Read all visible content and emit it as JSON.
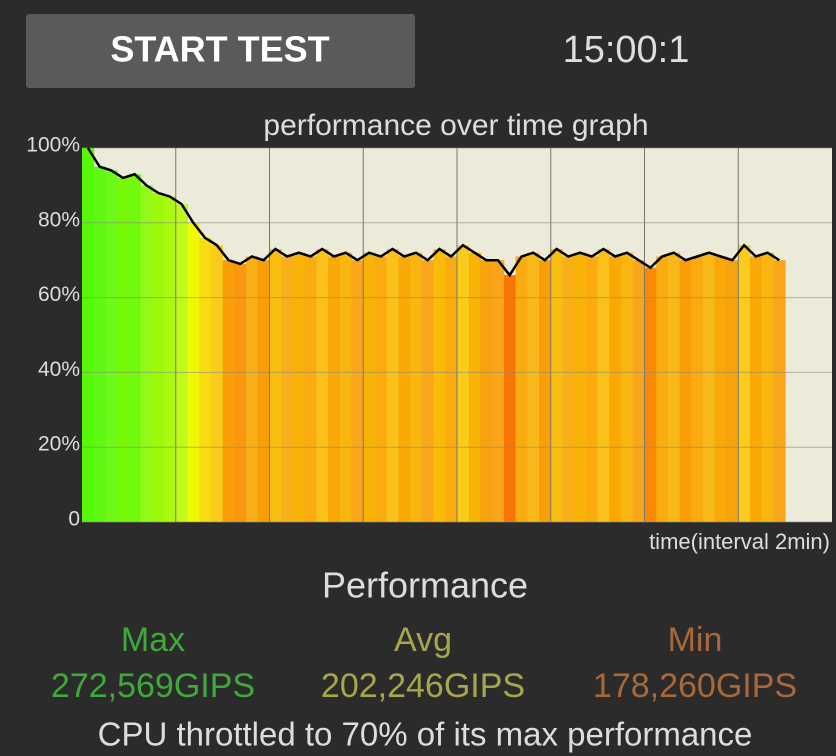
{
  "button": "START TEST",
  "timer": "15:00:1",
  "chart_data": {
    "type": "area",
    "title": "performance over time graph",
    "x_label": "time(interval 2min)",
    "x": [
      0,
      0.25,
      0.5,
      0.75,
      1,
      1.25,
      1.5,
      1.75,
      2,
      2.25,
      2.5,
      2.75,
      3,
      3.25,
      3.5,
      3.75,
      4,
      4.25,
      4.5,
      4.75,
      5,
      5.25,
      5.5,
      5.75,
      6,
      6.25,
      6.5,
      6.75,
      7,
      7.25,
      7.5,
      7.75,
      8,
      8.25,
      8.5,
      8.75,
      9,
      9.25,
      9.5,
      9.75,
      10,
      10.25,
      10.5,
      10.75,
      11,
      11.25,
      11.5,
      11.75,
      12,
      12.25,
      12.5,
      12.75,
      13,
      13.25,
      13.5,
      13.75,
      14,
      14.25,
      14.5,
      14.75
    ],
    "values": [
      100,
      95,
      94,
      92,
      93,
      90,
      88,
      87,
      85,
      80,
      76,
      74,
      70,
      69,
      71,
      70,
      73,
      71,
      72,
      71,
      73,
      71,
      72,
      70,
      72,
      71,
      73,
      71,
      72,
      70,
      73,
      71,
      74,
      72,
      70,
      70,
      66,
      71,
      72,
      70,
      73,
      71,
      72,
      71,
      73,
      71,
      72,
      70,
      68,
      71,
      72,
      70,
      71,
      72,
      71,
      70,
      74,
      71,
      72,
      70
    ],
    "line_color": "#000000",
    "xlim": [
      0,
      16
    ],
    "xticks": [
      2,
      4,
      6,
      8,
      10,
      12,
      14
    ],
    "ylim": [
      0,
      100
    ],
    "yticks": [
      0,
      {
        "value": 20,
        "label": "20%"
      },
      {
        "value": 40,
        "label": "40%"
      },
      {
        "value": 60,
        "label": "60%"
      },
      {
        "value": 80,
        "label": "80%"
      },
      {
        "value": 100,
        "label": "100%"
      }
    ],
    "grid": true
  },
  "performance": {
    "title": "Performance",
    "stats": [
      {
        "label": "Max",
        "value": "272,569GIPS",
        "color": "#3fa93a"
      },
      {
        "label": "Avg",
        "value": "202,246GIPS",
        "color": "#a8a64a"
      },
      {
        "label": "Min",
        "value": "178,260GIPS",
        "color": "#a8683a"
      }
    ],
    "summary": "CPU throttled to 70% of its max performance"
  }
}
